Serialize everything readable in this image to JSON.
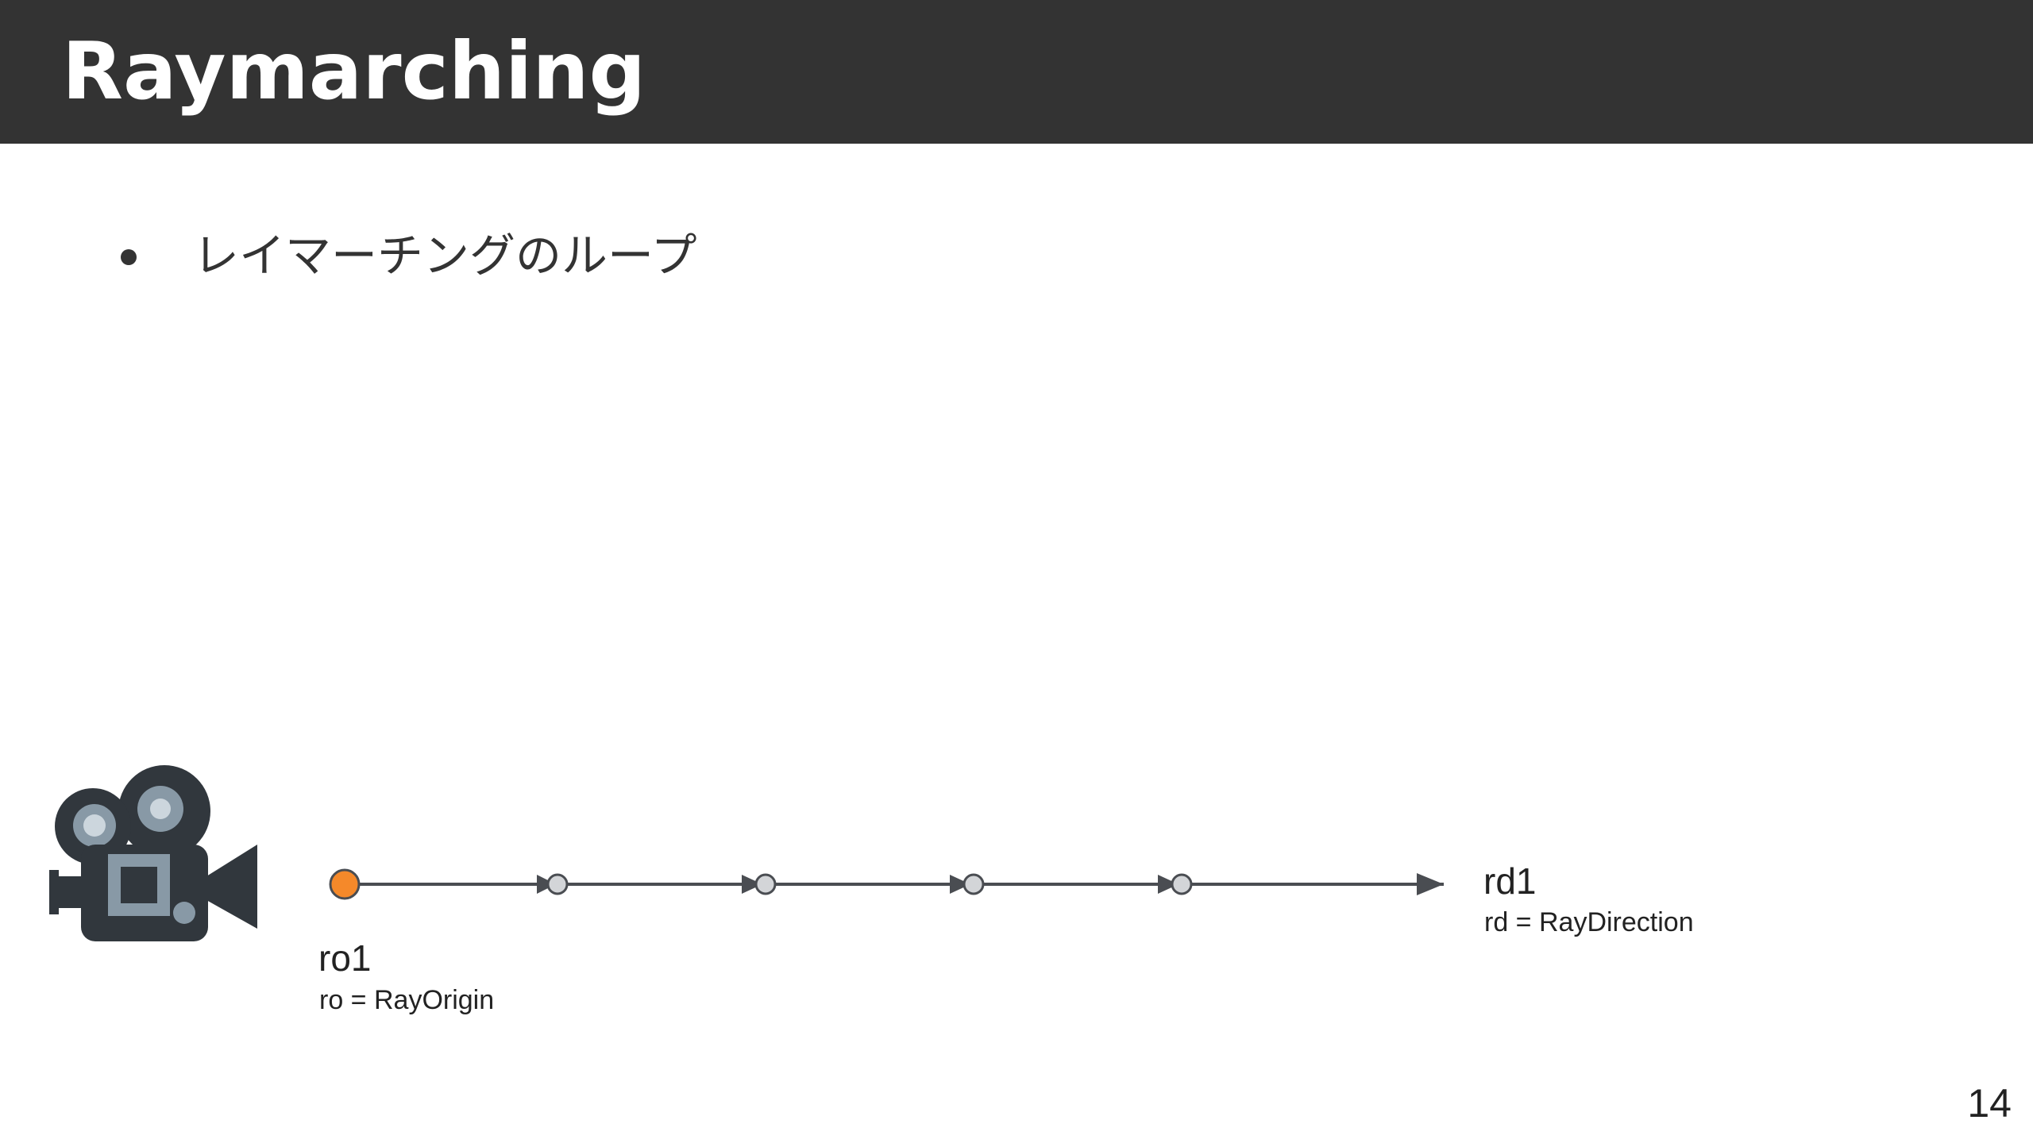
{
  "slide": {
    "title": "Raymarching",
    "bullets": [
      {
        "text": "レイマーチングのループ"
      }
    ],
    "page_number": "14"
  },
  "diagram": {
    "origin": {
      "name": "ro1",
      "definition": "ro = RayOrigin",
      "color": "#f5892a"
    },
    "direction": {
      "name": "rd1",
      "definition": "rd = RayDirection"
    },
    "step_points": 4,
    "colors": {
      "line": "#4a4d52",
      "step_fill": "#d3d5d8",
      "step_stroke": "#4a4d52"
    }
  },
  "icons": {
    "camera": "movie-camera-icon",
    "camera_colors": {
      "body": "#31373d",
      "accent": "#8899a6",
      "reel_inner": "#ccd6dd"
    }
  }
}
